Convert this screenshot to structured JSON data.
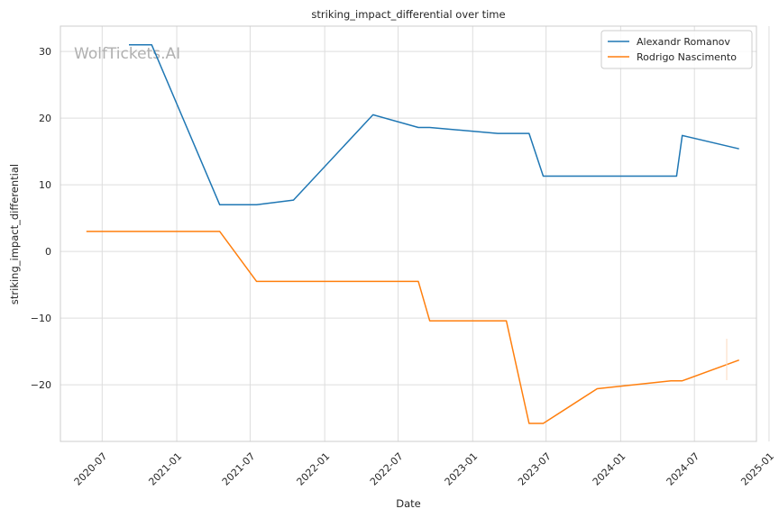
{
  "chart_data": {
    "type": "line",
    "title": "striking_impact_differential over time",
    "xlabel": "Date",
    "ylabel": "striking_impact_differential",
    "watermark": "WolfTickets.AI",
    "xlim": [
      "2020-03-20",
      "2024-12-01"
    ],
    "ylim": [
      -28.5,
      33.8
    ],
    "x_ticks": [
      "2020-07",
      "2021-01",
      "2021-07",
      "2022-01",
      "2022-07",
      "2023-01",
      "2023-07",
      "2024-01",
      "2024-07",
      "2025-01"
    ],
    "y_ticks": [
      30,
      20,
      10,
      0,
      -10,
      -20
    ],
    "y_tick_labels": [
      "30",
      "20",
      "10",
      "0",
      "−10",
      "−20"
    ],
    "grid": true,
    "legend": "top-right",
    "series": [
      {
        "name": "Alexandr Romanov",
        "color": "#1f77b4",
        "points": [
          {
            "x": "2020-09-05",
            "y": 31.0
          },
          {
            "x": "2020-10-31",
            "y": 31.0
          },
          {
            "x": "2021-04-17",
            "y": 7.0
          },
          {
            "x": "2021-07-17",
            "y": 7.0
          },
          {
            "x": "2021-10-16",
            "y": 7.7
          },
          {
            "x": "2022-04-30",
            "y": 20.5
          },
          {
            "x": "2022-08-20",
            "y": 18.6
          },
          {
            "x": "2022-09-17",
            "y": 18.6
          },
          {
            "x": "2023-03-04",
            "y": 17.7
          },
          {
            "x": "2023-05-20",
            "y": 17.7
          },
          {
            "x": "2023-06-24",
            "y": 11.3
          },
          {
            "x": "2024-05-18",
            "y": 11.3
          },
          {
            "x": "2024-06-01",
            "y": 17.4
          },
          {
            "x": "2024-10-19",
            "y": 15.4
          }
        ]
      },
      {
        "name": "Rodrigo Nascimento",
        "color": "#ff7f0e",
        "points": [
          {
            "x": "2020-05-23",
            "y": 3.0
          },
          {
            "x": "2021-04-17",
            "y": 3.0
          },
          {
            "x": "2021-07-17",
            "y": -4.5
          },
          {
            "x": "2022-08-20",
            "y": -4.5
          },
          {
            "x": "2022-09-17",
            "y": -10.4
          },
          {
            "x": "2023-03-25",
            "y": -10.4
          },
          {
            "x": "2023-05-20",
            "y": -25.8
          },
          {
            "x": "2023-06-24",
            "y": -25.8
          },
          {
            "x": "2023-11-04",
            "y": -20.6
          },
          {
            "x": "2024-05-04",
            "y": -19.4
          },
          {
            "x": "2024-06-01",
            "y": -19.4
          },
          {
            "x": "2024-10-19",
            "y": -16.3
          }
        ]
      }
    ]
  }
}
